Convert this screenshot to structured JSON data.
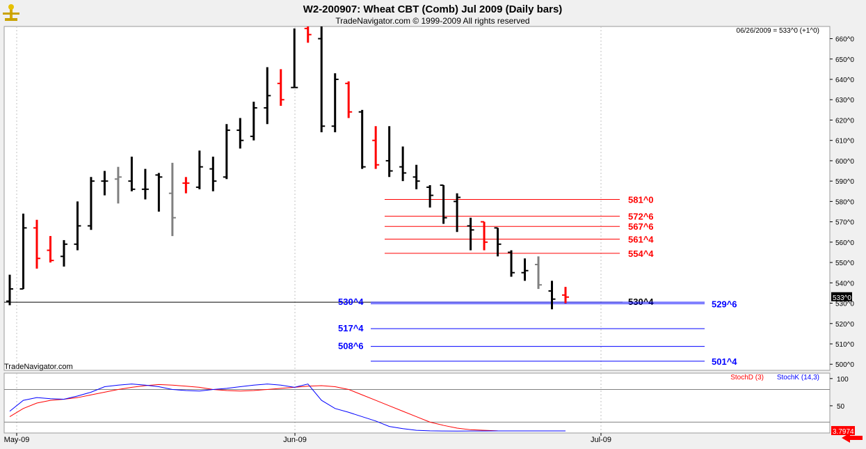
{
  "header": {
    "title": "W2-200907:  Wheat CBT (Comb) Jul 2009  (Daily bars)",
    "subtitle": "TradeNavigator.com © 1999-2009 All rights reserved",
    "readout": "06/26/2009 = 533^0 (+1^0)",
    "watermark": "TradeNavigator.com"
  },
  "colors": {
    "up": "#000000",
    "down": "#ff0000",
    "neutral": "#808080",
    "fib_red": "#ff0000",
    "fib_blue": "#0000ff",
    "stochD": "#ff0000",
    "stochK": "#0000ff"
  },
  "chart_data": {
    "type": "ohlc",
    "title": "W2-200907:  Wheat CBT (Comb) Jul 2009  (Daily bars)",
    "ylim": [
      497,
      666
    ],
    "y_ticks": [
      "500^0",
      "510^0",
      "520^0",
      "530^0",
      "540^0",
      "550^0",
      "560^0",
      "570^0",
      "580^0",
      "590^0",
      "600^0",
      "610^0",
      "620^0",
      "630^0",
      "640^0",
      "650^0",
      "660^0"
    ],
    "x_ticks": [
      "May-09",
      "Jun-09",
      "Jul-09"
    ],
    "last_price_label": "533^0",
    "bars": [
      {
        "o": 531,
        "h": 544,
        "l": 529,
        "c": 537,
        "col": "up"
      },
      {
        "o": 537,
        "h": 574,
        "l": 537,
        "c": 567,
        "col": "up"
      },
      {
        "o": 567,
        "h": 571,
        "l": 547,
        "c": 552,
        "col": "down"
      },
      {
        "o": 556,
        "h": 563,
        "l": 550,
        "c": 551,
        "col": "down"
      },
      {
        "o": 553,
        "h": 561,
        "l": 548,
        "c": 559,
        "col": "up"
      },
      {
        "o": 559,
        "h": 580,
        "l": 556,
        "c": 568,
        "col": "up"
      },
      {
        "o": 568,
        "h": 592,
        "l": 566,
        "c": 590,
        "col": "up"
      },
      {
        "o": 590,
        "h": 595,
        "l": 583,
        "c": 590,
        "col": "up"
      },
      {
        "o": 591,
        "h": 597,
        "l": 579,
        "c": 592,
        "col": "neutral"
      },
      {
        "o": 590,
        "h": 602,
        "l": 585,
        "c": 586,
        "col": "up"
      },
      {
        "o": 586,
        "h": 596,
        "l": 581,
        "c": 586,
        "col": "up"
      },
      {
        "o": 593,
        "h": 594,
        "l": 575,
        "c": 592,
        "col": "up"
      },
      {
        "o": 584,
        "h": 599,
        "l": 563,
        "c": 572,
        "col": "neutral"
      },
      {
        "o": 589,
        "h": 592,
        "l": 584,
        "c": 589,
        "col": "down"
      },
      {
        "o": 587,
        "h": 605,
        "l": 586,
        "c": 597,
        "col": "up"
      },
      {
        "o": 596,
        "h": 602,
        "l": 585,
        "c": 590,
        "col": "up"
      },
      {
        "o": 592,
        "h": 618,
        "l": 591,
        "c": 615,
        "col": "up"
      },
      {
        "o": 615,
        "h": 621,
        "l": 606,
        "c": 610,
        "col": "up"
      },
      {
        "o": 612,
        "h": 629,
        "l": 610,
        "c": 626,
        "col": "up"
      },
      {
        "o": 626,
        "h": 646,
        "l": 618,
        "c": 632,
        "col": "up"
      },
      {
        "o": 638,
        "h": 645,
        "l": 627,
        "c": 630,
        "col": "down"
      },
      {
        "o": 636,
        "h": 665,
        "l": 636,
        "c": 636,
        "col": "up"
      },
      {
        "o": 665,
        "h": 666,
        "l": 658,
        "c": 662,
        "col": "down"
      },
      {
        "o": 660,
        "h": 666,
        "l": 614,
        "c": 617,
        "col": "up"
      },
      {
        "o": 617,
        "h": 643,
        "l": 614,
        "c": 640,
        "col": "up"
      },
      {
        "o": 638,
        "h": 639,
        "l": 621,
        "c": 624,
        "col": "down"
      },
      {
        "o": 624,
        "h": 625,
        "l": 596,
        "c": 597,
        "col": "up"
      },
      {
        "o": 610,
        "h": 617,
        "l": 596,
        "c": 598,
        "col": "down"
      },
      {
        "o": 600,
        "h": 617,
        "l": 592,
        "c": 595,
        "col": "up"
      },
      {
        "o": 597,
        "h": 607,
        "l": 590,
        "c": 594,
        "col": "up"
      },
      {
        "o": 592,
        "h": 598,
        "l": 586,
        "c": 590,
        "col": "up"
      },
      {
        "o": 587,
        "h": 588,
        "l": 577,
        "c": 583,
        "col": "up"
      },
      {
        "o": 588,
        "h": 588,
        "l": 569,
        "c": 572,
        "col": "up"
      },
      {
        "o": 580,
        "h": 584,
        "l": 565,
        "c": 582,
        "col": "up"
      },
      {
        "o": 568,
        "h": 572,
        "l": 556,
        "c": 566,
        "col": "up"
      },
      {
        "o": 570,
        "h": 570,
        "l": 556,
        "c": 560,
        "col": "down"
      },
      {
        "o": 567,
        "h": 567,
        "l": 553,
        "c": 559,
        "col": "up"
      },
      {
        "o": 555,
        "h": 556,
        "l": 543,
        "c": 545,
        "col": "up"
      },
      {
        "o": 545,
        "h": 552,
        "l": 541,
        "c": 546,
        "col": "up"
      },
      {
        "o": 549,
        "h": 553,
        "l": 537,
        "c": 539,
        "col": "neutral"
      },
      {
        "o": 536,
        "h": 541,
        "l": 527,
        "c": 532,
        "col": "up"
      },
      {
        "o": 534,
        "h": 538,
        "l": 530,
        "c": 533,
        "col": "down"
      }
    ],
    "levels": [
      {
        "label": "581^0",
        "value": 581.0,
        "color": "red",
        "text_side": "right"
      },
      {
        "label": "572^6",
        "value": 572.75,
        "color": "red",
        "text_side": "right"
      },
      {
        "label": "567^6",
        "value": 567.75,
        "color": "red",
        "text_side": "right"
      },
      {
        "label": "561^4",
        "value": 561.5,
        "color": "red",
        "text_side": "right"
      },
      {
        "label": "554^4",
        "value": 554.5,
        "color": "red",
        "text_side": "right"
      },
      {
        "label": "530^4",
        "value": 530.5,
        "color": "blue",
        "text_side": "left"
      },
      {
        "label": "517^4",
        "value": 517.5,
        "color": "blue",
        "text_side": "left"
      },
      {
        "label": "508^6",
        "value": 508.75,
        "color": "blue",
        "text_side": "left"
      },
      {
        "label": "501^4",
        "value": 501.5,
        "color": "blue",
        "text_side": "far-right"
      },
      {
        "label": "529^6",
        "value": 529.75,
        "color": "blue",
        "text_side": "far-right"
      }
    ],
    "horizontal_line": {
      "label": "530^4",
      "value": 530.5
    },
    "stochastic": {
      "d_label": "StochD (3)",
      "k_label": "StochK (14,3)",
      "ylim": [
        0,
        110
      ],
      "y_ticks": [
        "100",
        "50"
      ],
      "last_value_label": "3.7974",
      "d_values": [
        30,
        45,
        55,
        60,
        62,
        65,
        70,
        75,
        80,
        84,
        87,
        89,
        88,
        86,
        84,
        80,
        78,
        77,
        78,
        80,
        82,
        84,
        86,
        87,
        85,
        80,
        70,
        60,
        50,
        40,
        30,
        20,
        14,
        9,
        6,
        5,
        4,
        3.8,
        3.8,
        3.8,
        3.8,
        3.8
      ],
      "k_values": [
        40,
        60,
        65,
        63,
        62,
        68,
        75,
        85,
        88,
        90,
        88,
        85,
        80,
        78,
        77,
        80,
        82,
        85,
        88,
        90,
        88,
        84,
        90,
        60,
        45,
        38,
        30,
        22,
        12,
        8,
        5,
        4,
        3.6,
        3.5,
        3.6,
        3.7,
        3.8,
        3.8,
        3.8,
        3.8,
        3.8,
        3.8
      ]
    }
  }
}
